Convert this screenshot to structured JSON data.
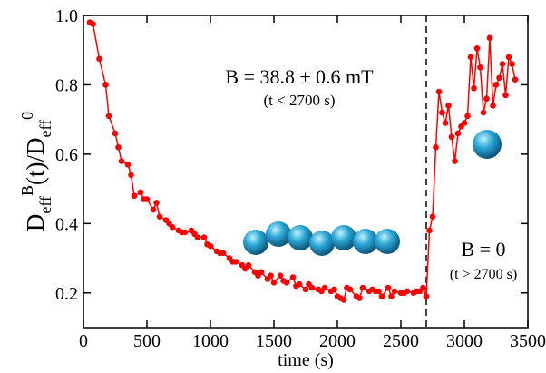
{
  "chart_data": {
    "type": "line",
    "xlabel": "time (s)",
    "ylabel": [
      "D",
      "eff",
      "B",
      "(t)/D",
      "eff",
      "0"
    ],
    "annotations": [
      "B = 38.8 ± 0.6 mT",
      "(t < 2700 s)",
      "B = 0",
      "(t > 2700 s)"
    ],
    "vline": 2700,
    "xlim": [
      0,
      3500
    ],
    "xticks": [
      0,
      500,
      1000,
      1500,
      2000,
      2500,
      3000,
      3500
    ],
    "ylim": [
      0.1,
      1.0
    ],
    "yticks": [
      0.2,
      0.4,
      0.6,
      0.8,
      {
        "value": 1,
        "label": "1.0"
      }
    ],
    "x": [
      50,
      75,
      125,
      175,
      200,
      250,
      275,
      300,
      350,
      375,
      400,
      450,
      475,
      500,
      550,
      575,
      600,
      650,
      675,
      700,
      750,
      775,
      800,
      850,
      875,
      900,
      950,
      975,
      1000,
      1050,
      1075,
      1100,
      1150,
      1175,
      1200,
      1250,
      1275,
      1300,
      1350,
      1375,
      1400,
      1450,
      1475,
      1500,
      1550,
      1575,
      1600,
      1650,
      1675,
      1700,
      1750,
      1775,
      1800,
      1850,
      1875,
      1900,
      1950,
      1975,
      2000,
      2025,
      2050,
      2075,
      2100,
      2150,
      2175,
      2200,
      2250,
      2275,
      2300,
      2325,
      2350,
      2400,
      2425,
      2450,
      2500,
      2525,
      2550,
      2600,
      2625,
      2650,
      2675,
      2700,
      2725,
      2750,
      2775,
      2800,
      2825,
      2850,
      2875,
      2900,
      2925,
      2950,
      2975,
      3000,
      3025,
      3050,
      3075,
      3100,
      3125,
      3150,
      3175,
      3200,
      3225,
      3250,
      3275,
      3300,
      3325,
      3350,
      3375,
      3400
    ],
    "series": [
      {
        "color": "#ff0000",
        "values": [
          0.98,
          0.975,
          0.875,
          0.8,
          0.71,
          0.66,
          0.62,
          0.58,
          0.57,
          0.54,
          0.48,
          0.49,
          0.47,
          0.47,
          0.44,
          0.46,
          0.42,
          0.41,
          0.4,
          0.39,
          0.38,
          0.375,
          0.375,
          0.38,
          0.37,
          0.36,
          0.36,
          0.34,
          0.335,
          0.32,
          0.315,
          0.315,
          0.3,
          0.29,
          0.29,
          0.28,
          0.27,
          0.28,
          0.26,
          0.25,
          0.26,
          0.24,
          0.25,
          0.23,
          0.25,
          0.235,
          0.23,
          0.245,
          0.22,
          0.225,
          0.21,
          0.225,
          0.215,
          0.21,
          0.205,
          0.215,
          0.205,
          0.21,
          0.19,
          0.185,
          0.18,
          0.215,
          0.21,
          0.19,
          0.185,
          0.215,
          0.205,
          0.21,
          0.205,
          0.205,
          0.19,
          0.215,
          0.19,
          0.205,
          0.2,
          0.2,
          0.205,
          0.2,
          0.205,
          0.205,
          0.215,
          0.19,
          0.38,
          0.42,
          0.62,
          0.78,
          0.72,
          0.69,
          0.74,
          0.65,
          0.58,
          0.66,
          0.68,
          0.69,
          0.71,
          0.88,
          0.79,
          0.905,
          0.85,
          0.72,
          0.76,
          0.935,
          0.74,
          0.8,
          0.82,
          0.86,
          0.77,
          0.88,
          0.86,
          0.815
        ]
      }
    ]
  }
}
